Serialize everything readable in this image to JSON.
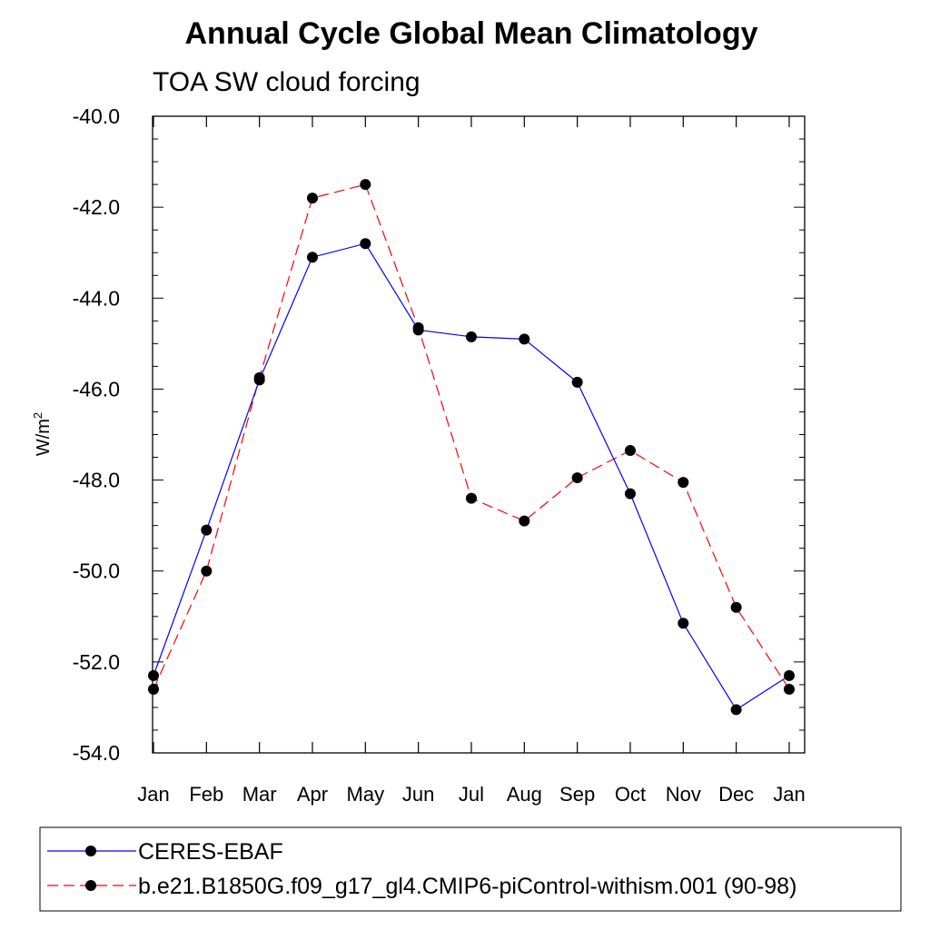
{
  "chart_data": {
    "type": "line",
    "title": "Annual Cycle Global Mean Climatology",
    "subtitle": "TOA SW cloud forcing",
    "ylabel_base": "W/m",
    "ylabel_sup": "2",
    "xlabel": "",
    "categories": [
      "Jan",
      "Feb",
      "Mar",
      "Apr",
      "May",
      "Jun",
      "Jul",
      "Aug",
      "Sep",
      "Oct",
      "Nov",
      "Dec",
      "Jan"
    ],
    "ylim": [
      -54.0,
      -40.0
    ],
    "yticks": [
      "-40.0",
      "-42.0",
      "-44.0",
      "-46.0",
      "-48.0",
      "-50.0",
      "-52.0",
      "-54.0"
    ],
    "ytick_values": [
      -40,
      -42,
      -44,
      -46,
      -48,
      -50,
      -52,
      -54
    ],
    "legend_position": "bottom",
    "series": [
      {
        "name": "CERES-EBAF",
        "color": "#0000ff",
        "dash": "solid",
        "values": [
          -52.3,
          -49.1,
          -45.8,
          -43.1,
          -42.8,
          -44.7,
          -44.85,
          -44.9,
          -45.85,
          -48.3,
          -51.15,
          -53.05,
          -52.3
        ]
      },
      {
        "name": "b.e21.B1850G.f09_g17_gl4.CMIP6-piControl-withism.001 (90-98)",
        "color": "#ff0000",
        "dash": "dashed",
        "values": [
          -52.6,
          -50.0,
          -45.75,
          -41.8,
          -41.5,
          -44.65,
          -48.4,
          -48.9,
          -47.95,
          -47.35,
          -48.05,
          -50.8,
          -52.6
        ]
      }
    ]
  }
}
